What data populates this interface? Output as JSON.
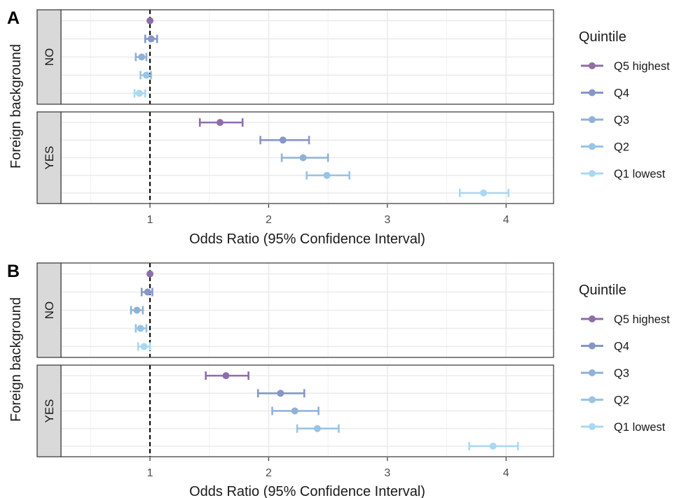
{
  "chart_data": [
    {
      "type": "scatter",
      "panel_label": "A",
      "xlabel": "Odds Ratio (95% Confidence Interval)",
      "ylabel": "Foreign background",
      "xlim": [
        0.25,
        4.4
      ],
      "x_ticks": [
        1,
        2,
        3,
        4
      ],
      "x_tick_labels": [
        "1",
        "2",
        "3",
        "4"
      ],
      "reference_line": 1,
      "legend_title": "Quintile",
      "legend_position": "right",
      "grid": true,
      "facets": [
        {
          "label": "NO",
          "points": [
            {
              "quintile": "Q5 highest",
              "or": 1.0,
              "lo": 1.0,
              "hi": 1.0
            },
            {
              "quintile": "Q4",
              "or": 1.01,
              "lo": 0.96,
              "hi": 1.06
            },
            {
              "quintile": "Q3",
              "or": 0.93,
              "lo": 0.88,
              "hi": 0.97
            },
            {
              "quintile": "Q2",
              "or": 0.97,
              "lo": 0.92,
              "hi": 1.01
            },
            {
              "quintile": "Q1 lowest",
              "or": 0.91,
              "lo": 0.87,
              "hi": 0.96
            }
          ]
        },
        {
          "label": "YES",
          "points": [
            {
              "quintile": "Q5 highest",
              "or": 1.59,
              "lo": 1.42,
              "hi": 1.78
            },
            {
              "quintile": "Q4",
              "or": 2.12,
              "lo": 1.93,
              "hi": 2.34
            },
            {
              "quintile": "Q3",
              "or": 2.29,
              "lo": 2.11,
              "hi": 2.5
            },
            {
              "quintile": "Q2",
              "or": 2.49,
              "lo": 2.32,
              "hi": 2.68
            },
            {
              "quintile": "Q1 lowest",
              "or": 3.81,
              "lo": 3.61,
              "hi": 4.02
            }
          ]
        }
      ]
    },
    {
      "type": "scatter",
      "panel_label": "B",
      "xlabel": "Odds Ratio (95% Confidence Interval)",
      "ylabel": "Foreign background",
      "xlim": [
        0.25,
        4.4
      ],
      "x_ticks": [
        1,
        2,
        3,
        4
      ],
      "x_tick_labels": [
        "1",
        "2",
        "3",
        "4"
      ],
      "reference_line": 1,
      "legend_title": "Quintile",
      "legend_position": "right",
      "grid": true,
      "facets": [
        {
          "label": "NO",
          "points": [
            {
              "quintile": "Q5 highest",
              "or": 1.0,
              "lo": 1.0,
              "hi": 1.0
            },
            {
              "quintile": "Q4",
              "or": 0.98,
              "lo": 0.93,
              "hi": 1.02
            },
            {
              "quintile": "Q3",
              "or": 0.89,
              "lo": 0.84,
              "hi": 0.94
            },
            {
              "quintile": "Q2",
              "or": 0.92,
              "lo": 0.88,
              "hi": 0.97
            },
            {
              "quintile": "Q1 lowest",
              "or": 0.95,
              "lo": 0.9,
              "hi": 1.0
            }
          ]
        },
        {
          "label": "YES",
          "points": [
            {
              "quintile": "Q5 highest",
              "or": 1.64,
              "lo": 1.47,
              "hi": 1.83
            },
            {
              "quintile": "Q4",
              "or": 2.1,
              "lo": 1.91,
              "hi": 2.3
            },
            {
              "quintile": "Q3",
              "or": 2.22,
              "lo": 2.03,
              "hi": 2.42
            },
            {
              "quintile": "Q2",
              "or": 2.41,
              "lo": 2.24,
              "hi": 2.59
            },
            {
              "quintile": "Q1 lowest",
              "or": 3.89,
              "lo": 3.69,
              "hi": 4.1
            }
          ]
        }
      ]
    }
  ],
  "legend": {
    "title": "Quintile",
    "items": [
      {
        "label": "Q5 highest",
        "color": "#8e6eaa"
      },
      {
        "label": "Q4",
        "color": "#8796c8"
      },
      {
        "label": "Q3",
        "color": "#8fb2d6"
      },
      {
        "label": "Q2",
        "color": "#98c4e6"
      },
      {
        "label": "Q1 lowest",
        "color": "#a9d8f3"
      }
    ]
  },
  "colors": {
    "panel_border": "#333333",
    "strip_fill": "#d9d9d9",
    "grid": "#ebebeb",
    "reference_line": "#000000",
    "text": "#1a1a1a",
    "tick_text": "#4d4d4d"
  }
}
